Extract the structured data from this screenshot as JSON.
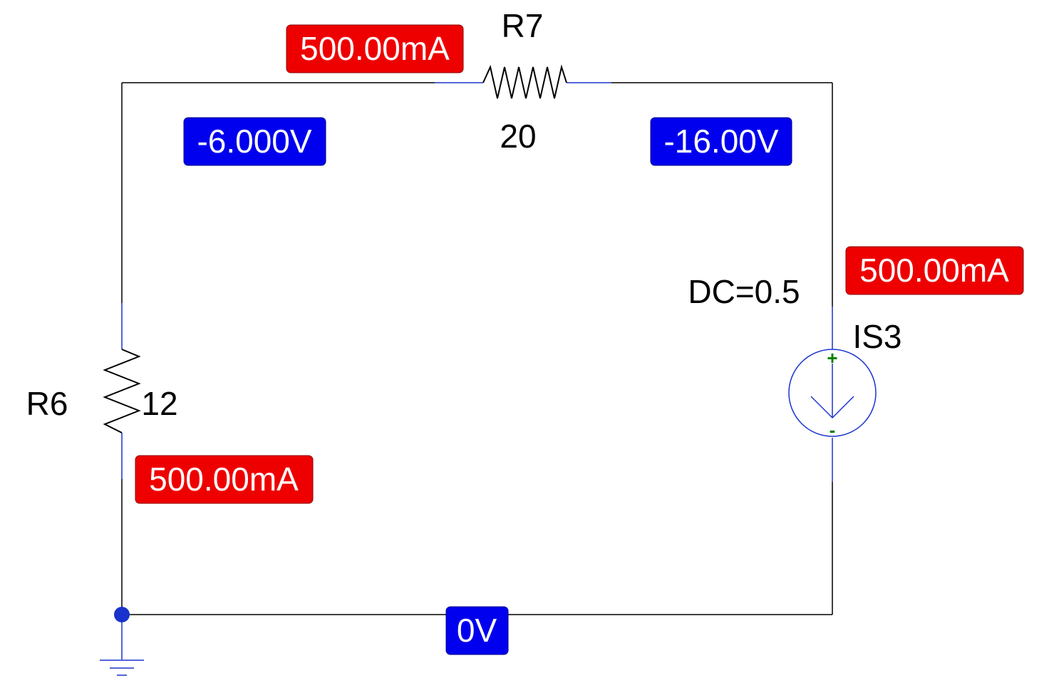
{
  "schematic": {
    "components": {
      "r7": {
        "ref": "R7",
        "value": "20"
      },
      "r6": {
        "ref": "R6",
        "value": "12"
      },
      "is3": {
        "ref": "IS3",
        "value": "DC=0.5",
        "plus": "+",
        "minus": "-"
      }
    },
    "current_markers": {
      "r7": "500.00mA",
      "is3": "500.00mA",
      "r6": "500.00mA"
    },
    "voltage_markers": {
      "left_node": "-6.000V",
      "right_node": "-16.00V",
      "ground_node": "0V"
    },
    "colors": {
      "current_marker": "#ee0000",
      "voltage_marker": "#0000ee",
      "wire": "#000000",
      "pin": "#1a33cc",
      "polarity": "#008000"
    }
  }
}
